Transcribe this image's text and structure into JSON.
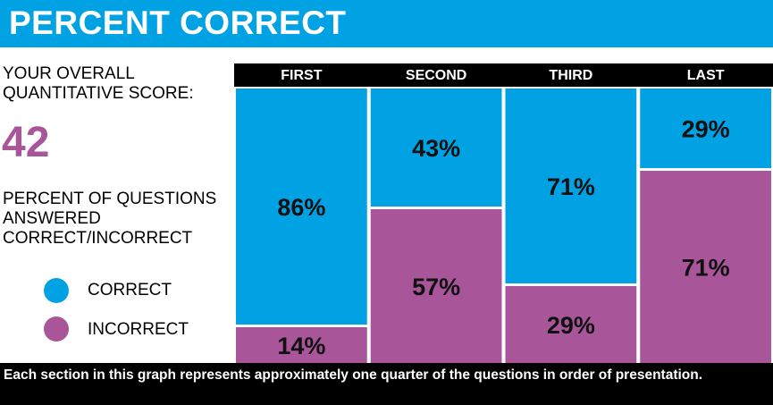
{
  "title": "PERCENT CORRECT",
  "score": {
    "label": "YOUR OVERALL QUANTITATIVE SCORE:",
    "value": "42"
  },
  "questions_label": "PERCENT OF QUESTIONS ANSWERED CORRECT/INCORRECT",
  "legend": {
    "correct": "CORRECT",
    "incorrect": "INCORRECT"
  },
  "colors": {
    "correct": "#00a2e3",
    "incorrect": "#a8559a",
    "score": "#a8559a",
    "header": "#000000"
  },
  "footer": "Each section in this graph represents approximately one quarter of the questions in order of presentation.",
  "chart_data": {
    "type": "bar",
    "stacked": true,
    "categories": [
      "FIRST",
      "SECOND",
      "THIRD",
      "LAST"
    ],
    "series": [
      {
        "name": "CORRECT",
        "values": [
          86,
          43,
          71,
          29
        ],
        "labels": [
          "86%",
          "43%",
          "71%",
          "29%"
        ]
      },
      {
        "name": "INCORRECT",
        "values": [
          14,
          57,
          29,
          71
        ],
        "labels": [
          "14%",
          "57%",
          "29%",
          "71%"
        ]
      }
    ],
    "ylim": [
      0,
      100
    ],
    "title": "",
    "xlabel": "",
    "ylabel": ""
  }
}
